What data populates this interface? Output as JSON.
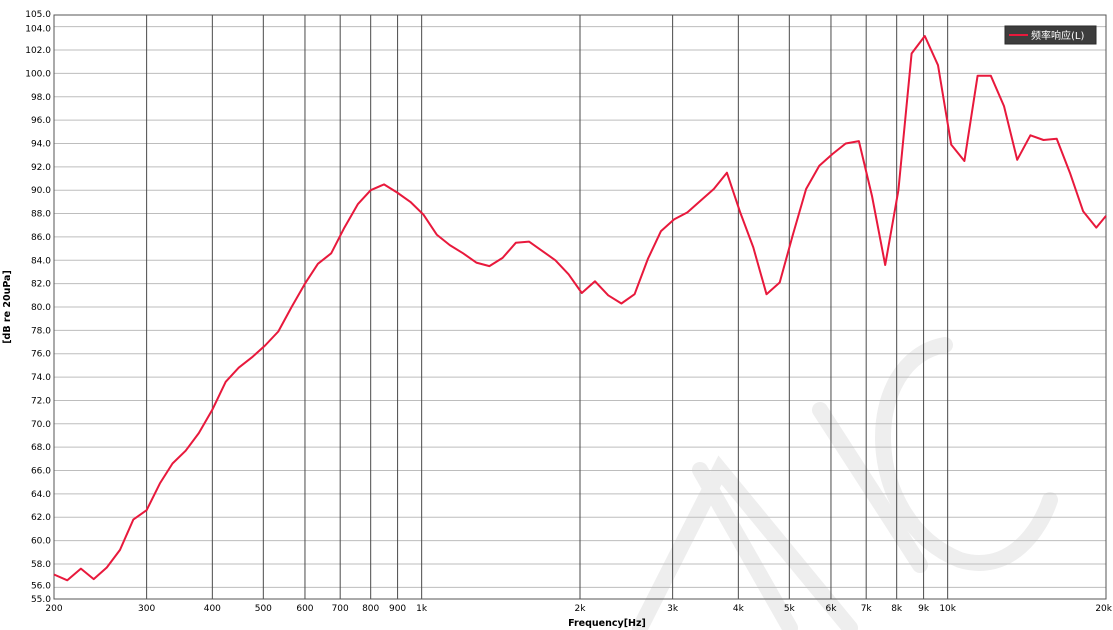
{
  "chart_data": {
    "type": "line",
    "title": "",
    "xlabel": "Frequency[Hz]",
    "ylabel": "[dB re 20uPa]",
    "x_scale": "log",
    "xlim": [
      200,
      20000
    ],
    "ylim": [
      55.0,
      105.0
    ],
    "grid": true,
    "legend_position": "top-right",
    "x_ticks": [
      {
        "value": 200,
        "label": "200"
      },
      {
        "value": 300,
        "label": "300"
      },
      {
        "value": 400,
        "label": "400"
      },
      {
        "value": 500,
        "label": "500"
      },
      {
        "value": 600,
        "label": "600"
      },
      {
        "value": 700,
        "label": "700"
      },
      {
        "value": 800,
        "label": "800"
      },
      {
        "value": 900,
        "label": "900"
      },
      {
        "value": 1000,
        "label": "1k"
      },
      {
        "value": 2000,
        "label": "2k"
      },
      {
        "value": 3000,
        "label": "3k"
      },
      {
        "value": 4000,
        "label": "4k"
      },
      {
        "value": 5000,
        "label": "5k"
      },
      {
        "value": 6000,
        "label": "6k"
      },
      {
        "value": 7000,
        "label": "7k"
      },
      {
        "value": 8000,
        "label": "8k"
      },
      {
        "value": 9000,
        "label": "9k"
      },
      {
        "value": 10000,
        "label": "10k"
      },
      {
        "value": 20000,
        "label": "20k"
      }
    ],
    "y_ticks": [
      "105.0",
      "104.0",
      "102.0",
      "100.0",
      "98.0",
      "96.0",
      "94.0",
      "92.0",
      "90.0",
      "88.0",
      "86.0",
      "84.0",
      "82.0",
      "80.0",
      "78.0",
      "76.0",
      "74.0",
      "72.0",
      "70.0",
      "68.0",
      "66.0",
      "64.0",
      "62.0",
      "60.0",
      "58.0",
      "56.0",
      "55.0"
    ],
    "series": [
      {
        "name": "频率响应(L)",
        "color": "#e8193c",
        "points": [
          [
            200,
            57.1
          ],
          [
            212,
            56.6
          ],
          [
            225,
            57.6
          ],
          [
            238,
            56.7
          ],
          [
            252,
            57.7
          ],
          [
            267,
            59.2
          ],
          [
            283,
            61.8
          ],
          [
            300,
            62.6
          ],
          [
            318,
            64.9
          ],
          [
            336,
            66.6
          ],
          [
            356,
            67.7
          ],
          [
            377,
            69.2
          ],
          [
            400,
            71.2
          ],
          [
            424,
            73.6
          ],
          [
            449,
            74.8
          ],
          [
            476,
            75.7
          ],
          [
            504,
            76.7
          ],
          [
            534,
            77.9
          ],
          [
            566,
            80.0
          ],
          [
            600,
            82.0
          ],
          [
            635,
            83.7
          ],
          [
            673,
            84.6
          ],
          [
            713,
            86.8
          ],
          [
            756,
            88.8
          ],
          [
            800,
            90.0
          ],
          [
            848,
            90.5
          ],
          [
            898,
            89.8
          ],
          [
            952,
            89.0
          ],
          [
            1008,
            87.9
          ],
          [
            1068,
            86.2
          ],
          [
            1131,
            85.3
          ],
          [
            1199,
            84.6
          ],
          [
            1270,
            83.8
          ],
          [
            1345,
            83.5
          ],
          [
            1425,
            84.2
          ],
          [
            1510,
            85.5
          ],
          [
            1600,
            85.6
          ],
          [
            1695,
            84.8
          ],
          [
            1796,
            84.0
          ],
          [
            1903,
            82.8
          ],
          [
            2016,
            81.2
          ],
          [
            2136,
            82.2
          ],
          [
            2263,
            81.0
          ],
          [
            2397,
            80.3
          ],
          [
            2540,
            81.1
          ],
          [
            2691,
            84.1
          ],
          [
            2851,
            86.5
          ],
          [
            3020,
            87.5
          ],
          [
            3200,
            88.1
          ],
          [
            3390,
            89.1
          ],
          [
            3592,
            90.1
          ],
          [
            3805,
            91.5
          ],
          [
            4032,
            88.1
          ],
          [
            4271,
            85.1
          ],
          [
            4525,
            81.1
          ],
          [
            4794,
            82.1
          ],
          [
            5079,
            86.2
          ],
          [
            5381,
            90.1
          ],
          [
            5701,
            92.1
          ],
          [
            6040,
            93.1
          ],
          [
            6399,
            94.0
          ],
          [
            6779,
            94.2
          ],
          [
            7182,
            89.5
          ],
          [
            7609,
            83.6
          ],
          [
            8062,
            90.0
          ],
          [
            8541,
            101.7
          ],
          [
            9049,
            103.2
          ],
          [
            9586,
            100.7
          ],
          [
            10156,
            93.9
          ],
          [
            10760,
            92.5
          ],
          [
            11400,
            99.8
          ],
          [
            12077,
            99.8
          ],
          [
            12795,
            97.2
          ],
          [
            13556,
            92.6
          ],
          [
            14362,
            94.7
          ],
          [
            15215,
            94.3
          ],
          [
            16120,
            94.4
          ],
          [
            17078,
            91.5
          ],
          [
            18093,
            88.2
          ],
          [
            19169,
            86.8
          ],
          [
            20000,
            87.8
          ]
        ]
      }
    ]
  }
}
